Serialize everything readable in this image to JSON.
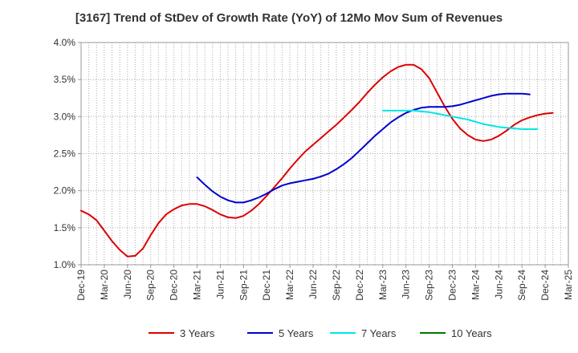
{
  "chart_data": {
    "type": "line",
    "title": "[3167]  Trend of StDev of Growth Rate (YoY) of 12Mo Mov Sum of Revenues",
    "xlabel": "",
    "ylabel": "",
    "ylim": [
      1.0,
      4.0
    ],
    "y_ticks": [
      "1.0%",
      "1.5%",
      "2.0%",
      "2.5%",
      "3.0%",
      "3.5%",
      "4.0%"
    ],
    "y_tick_values": [
      1.0,
      1.5,
      2.0,
      2.5,
      3.0,
      3.5,
      4.0
    ],
    "x_ticks": [
      "Dec-19",
      "Mar-20",
      "Jun-20",
      "Sep-20",
      "Dec-20",
      "Mar-21",
      "Jun-21",
      "Sep-21",
      "Dec-21",
      "Mar-22",
      "Jun-22",
      "Sep-22",
      "Dec-22",
      "Mar-23",
      "Jun-23",
      "Sep-23",
      "Dec-23",
      "Mar-24",
      "Jun-24",
      "Sep-24",
      "Dec-24",
      "Mar-25"
    ],
    "grid": true,
    "legend_position": "bottom",
    "series": [
      {
        "name": "3 Years",
        "color": "#dd0000",
        "start_month": 0,
        "values": [
          1.73,
          1.68,
          1.6,
          1.46,
          1.32,
          1.2,
          1.11,
          1.12,
          1.22,
          1.4,
          1.56,
          1.68,
          1.75,
          1.8,
          1.82,
          1.82,
          1.79,
          1.74,
          1.68,
          1.64,
          1.63,
          1.66,
          1.73,
          1.82,
          1.93,
          2.05,
          2.17,
          2.3,
          2.42,
          2.53,
          2.62,
          2.71,
          2.8,
          2.89,
          2.99,
          3.09,
          3.2,
          3.32,
          3.43,
          3.53,
          3.61,
          3.67,
          3.7,
          3.7,
          3.64,
          3.52,
          3.33,
          3.14,
          2.97,
          2.84,
          2.75,
          2.69,
          2.67,
          2.69,
          2.74,
          2.81,
          2.89,
          2.95,
          2.99,
          3.02,
          3.04,
          3.05
        ]
      },
      {
        "name": "5 Years",
        "color": "#0000cc",
        "start_month": 15,
        "values": [
          2.18,
          2.08,
          1.99,
          1.92,
          1.87,
          1.84,
          1.84,
          1.87,
          1.91,
          1.96,
          2.02,
          2.07,
          2.1,
          2.12,
          2.14,
          2.16,
          2.19,
          2.23,
          2.29,
          2.36,
          2.44,
          2.54,
          2.64,
          2.74,
          2.83,
          2.92,
          2.99,
          3.05,
          3.09,
          3.12,
          3.13,
          3.13,
          3.13,
          3.14,
          3.16,
          3.19,
          3.22,
          3.25,
          3.28,
          3.3,
          3.31,
          3.31,
          3.31,
          3.3
        ]
      },
      {
        "name": "7 Years",
        "color": "#00e5e5",
        "start_month": 39,
        "values": [
          3.08,
          3.08,
          3.08,
          3.08,
          3.08,
          3.07,
          3.06,
          3.04,
          3.02,
          3.0,
          2.98,
          2.96,
          2.93,
          2.9,
          2.88,
          2.86,
          2.85,
          2.84,
          2.83,
          2.83,
          2.83
        ]
      },
      {
        "name": "10 Years",
        "color": "#007700",
        "start_month": 0,
        "values": []
      }
    ]
  }
}
